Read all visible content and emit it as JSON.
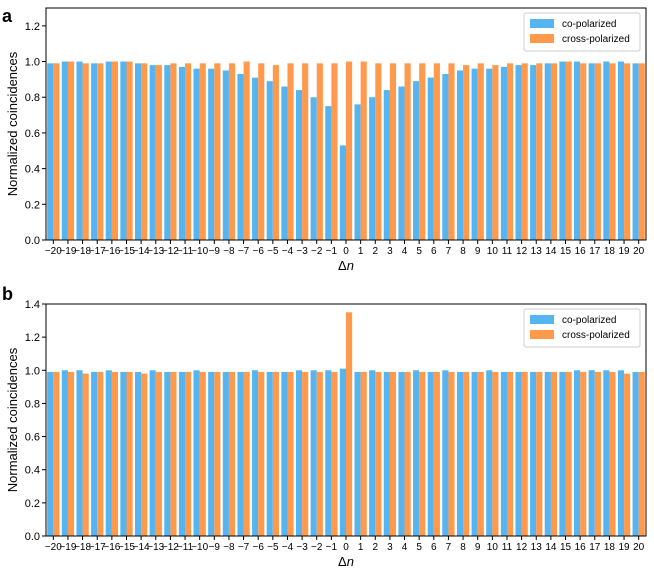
{
  "colors": {
    "co": "#56b4f0",
    "cross": "#ff9a4d"
  },
  "chart_data": [
    {
      "panel_label": "a",
      "type": "bar",
      "xlabel_prefix": "Δ",
      "xlabel_var": "n",
      "ylabel": "Normalized coincidences",
      "ylim": [
        0,
        1.3
      ],
      "yticks": [
        "0.0",
        "0.2",
        "0.4",
        "0.6",
        "0.8",
        "1.0",
        "1.2"
      ],
      "ytick_values": [
        0,
        0.2,
        0.4,
        0.6,
        0.8,
        1.0,
        1.2
      ],
      "categories": [
        "−20",
        "−19",
        "−18",
        "−17",
        "−16",
        "−15",
        "−14",
        "−13",
        "−12",
        "−11",
        "−10",
        "−9",
        "−8",
        "−7",
        "−6",
        "−5",
        "−4",
        "−3",
        "−2",
        "−1",
        "0",
        "1",
        "2",
        "3",
        "4",
        "5",
        "6",
        "7",
        "8",
        "9",
        "10",
        "11",
        "12",
        "13",
        "14",
        "15",
        "16",
        "17",
        "18",
        "19",
        "20"
      ],
      "legend": [
        "co-polarized",
        "cross-polarized"
      ],
      "legend_position": "top-right",
      "series": [
        {
          "name": "co-polarized",
          "values": [
            0.99,
            1.0,
            1.0,
            0.99,
            1.0,
            1.0,
            0.99,
            0.98,
            0.98,
            0.97,
            0.96,
            0.96,
            0.95,
            0.93,
            0.91,
            0.89,
            0.86,
            0.84,
            0.8,
            0.75,
            0.53,
            0.76,
            0.8,
            0.84,
            0.86,
            0.89,
            0.91,
            0.93,
            0.95,
            0.96,
            0.96,
            0.97,
            0.98,
            0.98,
            0.99,
            1.0,
            1.0,
            0.99,
            1.0,
            1.0,
            0.99
          ]
        },
        {
          "name": "cross-polarized",
          "values": [
            0.99,
            1.0,
            0.99,
            0.99,
            1.0,
            1.0,
            0.99,
            0.98,
            0.99,
            0.99,
            0.99,
            0.99,
            0.99,
            1.0,
            0.99,
            0.98,
            0.99,
            0.99,
            0.99,
            0.99,
            1.0,
            1.0,
            0.99,
            0.99,
            0.99,
            0.99,
            0.99,
            0.99,
            0.98,
            0.99,
            0.98,
            0.99,
            0.99,
            0.99,
            0.99,
            1.0,
            0.99,
            0.99,
            0.99,
            0.99,
            0.99
          ]
        }
      ]
    },
    {
      "panel_label": "b",
      "type": "bar",
      "xlabel_prefix": "Δ",
      "xlabel_var": "n",
      "ylabel": "Normalized coincidences",
      "ylim": [
        0,
        1.4
      ],
      "yticks": [
        "0.0",
        "0.2",
        "0.4",
        "0.6",
        "0.8",
        "1.0",
        "1.2",
        "1.4"
      ],
      "ytick_values": [
        0,
        0.2,
        0.4,
        0.6,
        0.8,
        1.0,
        1.2,
        1.4
      ],
      "categories": [
        "−20",
        "−19",
        "−18",
        "−17",
        "−16",
        "−15",
        "−14",
        "−13",
        "−12",
        "−11",
        "−10",
        "−9",
        "−8",
        "−7",
        "−6",
        "−5",
        "−4",
        "−3",
        "−2",
        "−1",
        "0",
        "1",
        "2",
        "3",
        "4",
        "5",
        "6",
        "7",
        "8",
        "9",
        "10",
        "11",
        "12",
        "13",
        "14",
        "15",
        "16",
        "17",
        "18",
        "19",
        "20"
      ],
      "legend": [
        "co-polarized",
        "cross-polarized"
      ],
      "legend_position": "top-right",
      "series": [
        {
          "name": "co-polarized",
          "values": [
            0.99,
            1.0,
            1.0,
            0.99,
            1.0,
            0.99,
            0.99,
            1.0,
            0.99,
            0.99,
            1.0,
            0.99,
            0.99,
            0.99,
            1.0,
            0.99,
            0.99,
            1.0,
            1.0,
            1.0,
            1.01,
            0.99,
            1.0,
            0.99,
            0.99,
            1.0,
            0.99,
            1.0,
            0.99,
            0.99,
            1.0,
            0.99,
            0.99,
            0.99,
            0.99,
            0.99,
            1.0,
            1.0,
            1.0,
            1.0,
            0.99
          ]
        },
        {
          "name": "cross-polarized",
          "values": [
            0.99,
            0.99,
            0.98,
            0.99,
            0.99,
            0.99,
            0.98,
            0.99,
            0.99,
            0.99,
            0.99,
            0.99,
            0.99,
            0.99,
            0.99,
            0.99,
            0.99,
            0.99,
            0.99,
            0.99,
            1.35,
            0.99,
            0.99,
            0.99,
            0.99,
            0.99,
            0.99,
            0.99,
            0.99,
            0.99,
            0.99,
            0.99,
            0.99,
            0.99,
            0.99,
            0.99,
            0.99,
            0.99,
            0.99,
            0.98,
            0.99
          ]
        }
      ]
    }
  ]
}
